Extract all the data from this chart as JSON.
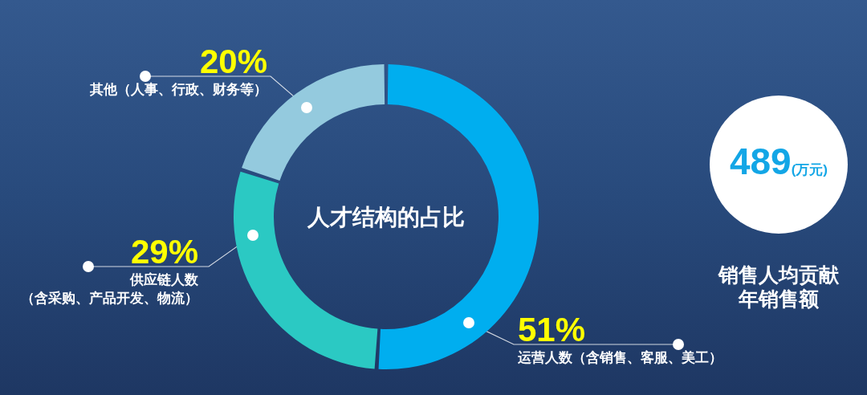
{
  "chart_data": [
    {
      "type": "donut",
      "title": "人才结构的占比",
      "categories": [
        "运营人数（含销售、客服、美工）",
        "供应链人数（含采购、产品开发、物流）",
        "其他（人事、行政、财务等）"
      ],
      "values": [
        51,
        29,
        20
      ],
      "value_labels": [
        "51%",
        "29%",
        "20%"
      ],
      "colors": [
        "#00aeef",
        "#2bc9c3",
        "#94cade"
      ]
    },
    {
      "type": "other",
      "title": "销售人均贡献年销售额",
      "annotations": [
        "489",
        "(万元)"
      ]
    }
  ]
}
